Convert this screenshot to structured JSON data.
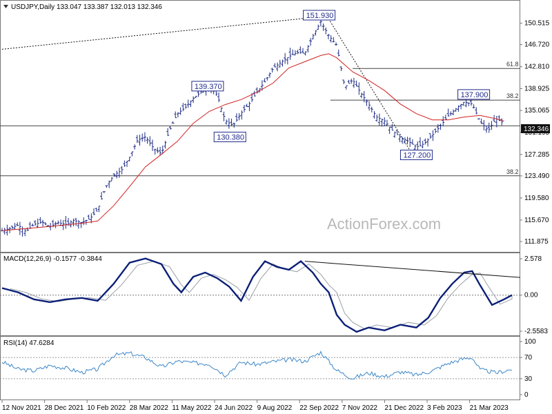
{
  "panels": {
    "price_title": "USDJPY,Daily  133.047 133.387 132.013 132.346",
    "macd_title": "MACD(12,26,9) -0.1577 -0.3844",
    "rsi_title": "RSI(14) 47.6284",
    "watermark": "ActionForex.com",
    "current_price_tag": "132.346"
  },
  "colors": {
    "candles": "#1b2a84",
    "ma": "#d11f1f",
    "macd_line": "#0b1f78",
    "signal_line": "#9aa0a6",
    "rsi_line": "#3a86c8",
    "levels": "#444444",
    "grid": "#777777"
  },
  "chart_data": [
    {
      "type": "candlestick",
      "panel": "price",
      "ylim": [
        111.875,
        151.93
      ],
      "y_ticks": [
        "150.515",
        "146.720",
        "142.810",
        "138.925",
        "135.065",
        "131.195",
        "127.285",
        "123.490",
        "119.580",
        "115.670",
        "111.875"
      ],
      "x_ticks": [
        "12 Nov 2021",
        "28 Dec 2021",
        "10 Feb 2022",
        "28 Mar 2022",
        "11 May 2022",
        "24 Jun 2022",
        "9 Aug 2022",
        "22 Sep 2022",
        "7 Nov 2022",
        "21 Dec 2022",
        "3 Feb 2023",
        "21 Mar 2023"
      ],
      "price_path": [
        [
          0,
          113.8
        ],
        [
          10,
          114.2
        ],
        [
          20,
          114.8
        ],
        [
          30,
          113.6
        ],
        [
          40,
          114.9
        ],
        [
          50,
          115.3
        ],
        [
          60,
          114.5
        ],
        [
          70,
          115.2
        ],
        [
          80,
          114.9
        ],
        [
          90,
          115.6
        ],
        [
          100,
          115.2
        ],
        [
          110,
          115.9
        ],
        [
          120,
          117.5
        ],
        [
          130,
          121.5
        ],
        [
          140,
          123.6
        ],
        [
          150,
          124.5
        ],
        [
          160,
          126.8
        ],
        [
          170,
          129.8
        ],
        [
          180,
          130.4
        ],
        [
          190,
          128.4
        ],
        [
          200,
          127.4
        ],
        [
          210,
          131.5
        ],
        [
          220,
          134.5
        ],
        [
          230,
          135.6
        ],
        [
          240,
          137.2
        ],
        [
          250,
          138.4
        ],
        [
          260,
          139.37
        ],
        [
          270,
          137.8
        ],
        [
          280,
          133.3
        ],
        [
          290,
          132.4
        ],
        [
          300,
          134.6
        ],
        [
          310,
          136.2
        ],
        [
          320,
          138.3
        ],
        [
          330,
          140.2
        ],
        [
          340,
          142.5
        ],
        [
          350,
          143.6
        ],
        [
          360,
          144.6
        ],
        [
          370,
          145.3
        ],
        [
          380,
          145.2
        ],
        [
          390,
          148.2
        ],
        [
          400,
          150.8
        ],
        [
          410,
          148.3
        ],
        [
          420,
          146.6
        ],
        [
          430,
          139.2
        ],
        [
          440,
          140.5
        ],
        [
          450,
          138.2
        ],
        [
          460,
          136.2
        ],
        [
          470,
          133.9
        ],
        [
          480,
          133.2
        ],
        [
          490,
          131.5
        ],
        [
          500,
          130.3
        ],
        [
          510,
          129.6
        ],
        [
          520,
          128.6
        ],
        [
          530,
          129.2
        ],
        [
          540,
          130.7
        ],
        [
          550,
          132.3
        ],
        [
          560,
          134.1
        ],
        [
          570,
          135.4
        ],
        [
          580,
          136.6
        ],
        [
          590,
          136.2
        ],
        [
          600,
          133.1
        ],
        [
          610,
          131.5
        ],
        [
          620,
          133.6
        ],
        [
          630,
          132.8
        ]
      ],
      "ma_path": [
        [
          0,
          113.8
        ],
        [
          50,
          114.4
        ],
        [
          100,
          115.1
        ],
        [
          120,
          115.5
        ],
        [
          140,
          118.2
        ],
        [
          160,
          121.6
        ],
        [
          180,
          125.1
        ],
        [
          200,
          127.3
        ],
        [
          220,
          129.6
        ],
        [
          240,
          132.8
        ],
        [
          260,
          134.9
        ],
        [
          280,
          136.1
        ],
        [
          300,
          137.0
        ],
        [
          320,
          138.3
        ],
        [
          340,
          139.9
        ],
        [
          360,
          142.6
        ],
        [
          380,
          143.7
        ],
        [
          400,
          144.8
        ],
        [
          410,
          145.1
        ],
        [
          420,
          144.4
        ],
        [
          440,
          141.9
        ],
        [
          460,
          140.4
        ],
        [
          480,
          138.6
        ],
        [
          500,
          136.2
        ],
        [
          520,
          134.5
        ],
        [
          540,
          133.4
        ],
        [
          560,
          133.4
        ],
        [
          580,
          133.9
        ],
        [
          600,
          134.2
        ],
        [
          620,
          133.6
        ],
        [
          630,
          133.2
        ]
      ],
      "levels": [
        {
          "label": "61.8",
          "price": 142.5
        },
        {
          "label": "38.2",
          "price": 136.9
        },
        {
          "label": "38.2",
          "price": 123.5
        },
        {
          "label": "",
          "price": 132.346
        }
      ],
      "annotations": [
        {
          "text": "151.930",
          "x": 398,
          "price": 151.93
        },
        {
          "text": "139.370",
          "x": 258,
          "price": 139.37
        },
        {
          "text": "130.380",
          "x": 286,
          "price": 130.38
        },
        {
          "text": "137.900",
          "x": 592,
          "price": 137.9
        },
        {
          "text": "127.200",
          "x": 520,
          "price": 127.2
        }
      ],
      "trendlines": [
        {
          "x1": 0,
          "p1": 145.9,
          "x2": 410,
          "p2": 151.8
        },
        {
          "x1": 408,
          "p1": 151.7,
          "x2": 512,
          "p2": 128.0
        }
      ]
    },
    {
      "type": "line",
      "panel": "macd",
      "ylim": [
        -2.5583,
        2.578
      ],
      "y_ticks": [
        "2.578",
        "0.00",
        "-2.5583"
      ],
      "series": [
        {
          "name": "MACD",
          "values": [
            [
              0,
              0.5
            ],
            [
              20,
              0.2
            ],
            [
              40,
              -0.3
            ],
            [
              60,
              -0.5
            ],
            [
              80,
              -0.3
            ],
            [
              100,
              -0.2
            ],
            [
              120,
              -0.4
            ],
            [
              140,
              0.8
            ],
            [
              160,
              2.3
            ],
            [
              180,
              2.6
            ],
            [
              200,
              2.2
            ],
            [
              215,
              0.8
            ],
            [
              225,
              0.2
            ],
            [
              240,
              1.3
            ],
            [
              255,
              1.6
            ],
            [
              270,
              1.2
            ],
            [
              285,
              0.6
            ],
            [
              300,
              -0.4
            ],
            [
              315,
              1.3
            ],
            [
              330,
              2.4
            ],
            [
              345,
              2.0
            ],
            [
              360,
              1.8
            ],
            [
              375,
              2.4
            ],
            [
              390,
              1.6
            ],
            [
              400,
              0.8
            ],
            [
              410,
              0.2
            ],
            [
              420,
              -1.4
            ],
            [
              430,
              -2.1
            ],
            [
              445,
              -2.6
            ],
            [
              460,
              -2.3
            ],
            [
              480,
              -2.5
            ],
            [
              500,
              -2.1
            ],
            [
              520,
              -2.3
            ],
            [
              535,
              -1.6
            ],
            [
              550,
              -0.2
            ],
            [
              565,
              0.8
            ],
            [
              580,
              1.6
            ],
            [
              590,
              1.7
            ],
            [
              600,
              0.7
            ],
            [
              615,
              -0.7
            ],
            [
              630,
              -0.3
            ],
            [
              640,
              0.0
            ]
          ]
        }
      ]
    },
    {
      "type": "line",
      "panel": "rsi",
      "ylim": [
        0,
        100
      ],
      "y_ticks": [
        "100",
        "70",
        "30",
        "0"
      ],
      "levels": [
        70,
        30
      ],
      "series": [
        {
          "name": "RSI",
          "values": [
            [
              0,
              62
            ],
            [
              20,
              48
            ],
            [
              40,
              45
            ],
            [
              60,
              55
            ],
            [
              80,
              50
            ],
            [
              100,
              42
            ],
            [
              120,
              48
            ],
            [
              140,
              74
            ],
            [
              160,
              78
            ],
            [
              180,
              70
            ],
            [
              200,
              52
            ],
            [
              220,
              63
            ],
            [
              240,
              60
            ],
            [
              260,
              58
            ],
            [
              280,
              37
            ],
            [
              300,
              61
            ],
            [
              320,
              57
            ],
            [
              340,
              62
            ],
            [
              360,
              66
            ],
            [
              380,
              63
            ],
            [
              400,
              80
            ],
            [
              420,
              46
            ],
            [
              430,
              38
            ],
            [
              440,
              31
            ],
            [
              460,
              41
            ],
            [
              480,
              34
            ],
            [
              500,
              43
            ],
            [
              520,
              37
            ],
            [
              540,
              45
            ],
            [
              560,
              59
            ],
            [
              580,
              68
            ],
            [
              590,
              70
            ],
            [
              600,
              47
            ],
            [
              620,
              41
            ],
            [
              640,
              48
            ]
          ]
        }
      ]
    }
  ]
}
